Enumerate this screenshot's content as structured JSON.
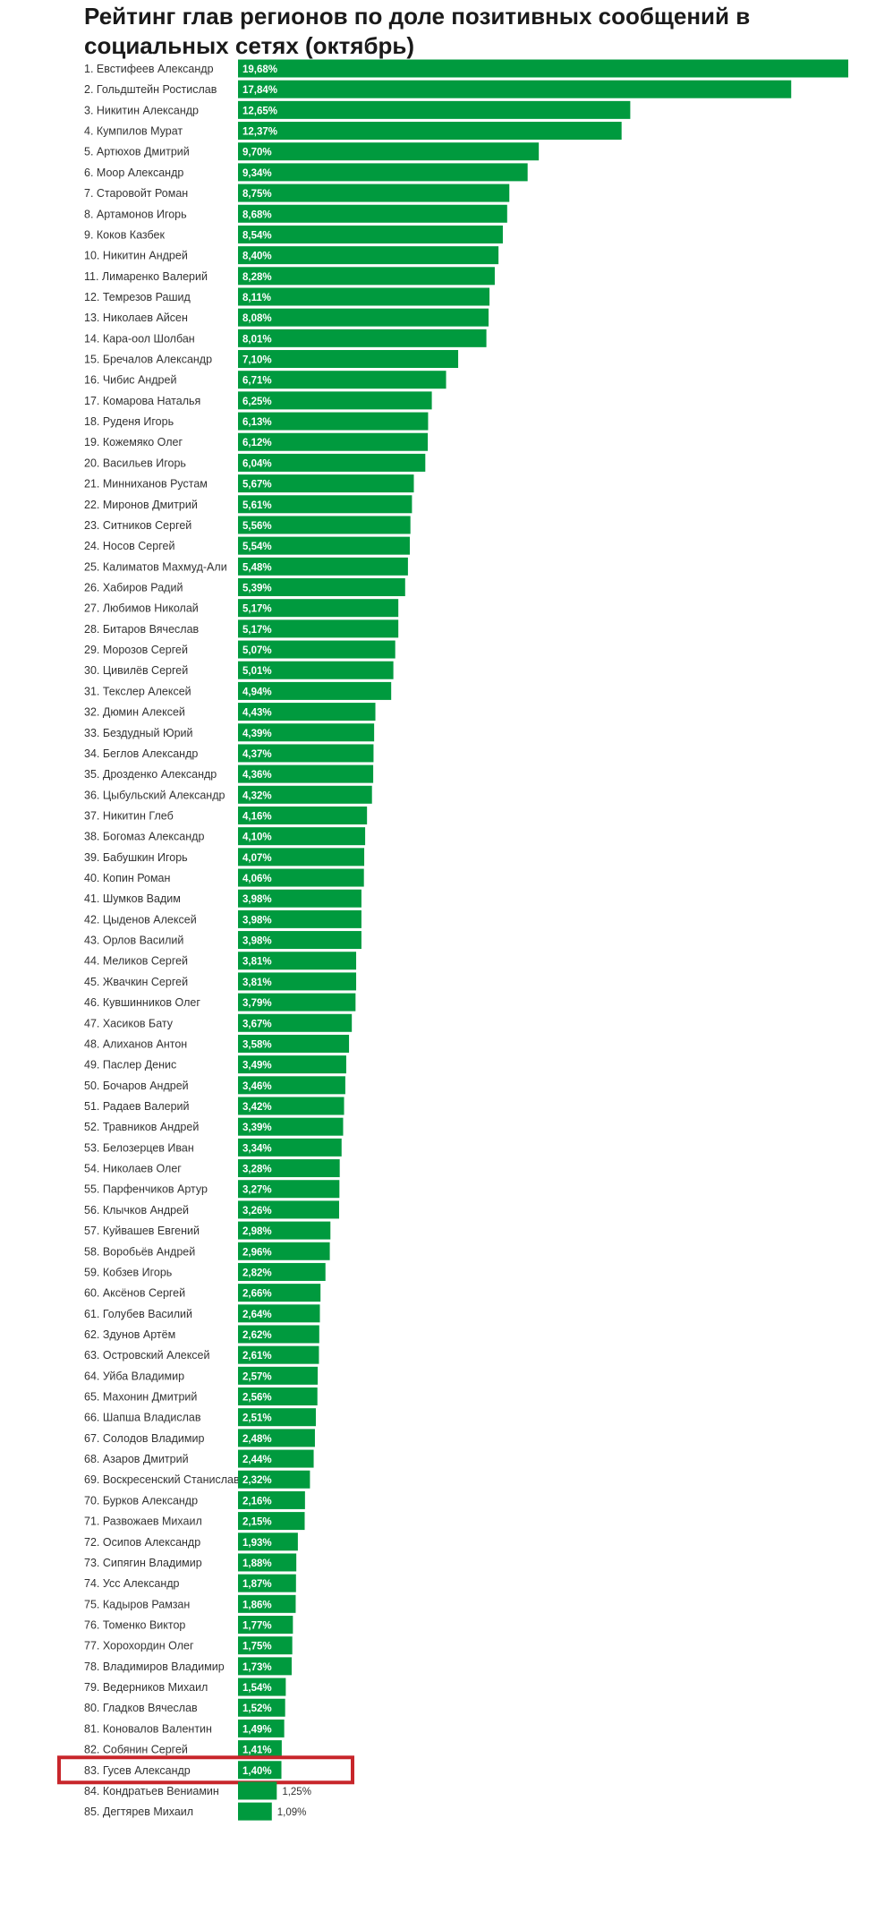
{
  "chart_data": {
    "type": "bar",
    "orientation": "horizontal",
    "title": "Рейтинг глав регионов по доле позитивных сообщений в социальных сетях (октябрь)",
    "bar_color": "#009a3e",
    "highlight_color": "#c8262b",
    "highlight_category": "83. Гусев Александр",
    "categories": [
      "1. Евстифеев Александр",
      "2. Гольдштейн Ростислав",
      "3. Никитин Александр",
      "4. Кумпилов Мурат",
      "5. Артюхов Дмитрий",
      "6. Моор Александр",
      "7. Старовойт Роман",
      "8. Артамонов Игорь",
      "9. Коков Казбек",
      "10. Никитин Андрей",
      "11. Лимаренко Валерий",
      "12. Темрезов Рашид",
      "13. Николаев Айсен",
      "14. Кара-оол Шолбан",
      "15. Бречалов Александр",
      "16. Чибис Андрей",
      "17. Комарова Наталья",
      "18. Руденя Игорь",
      "19. Кожемяко Олег",
      "20. Васильев Игорь",
      "21. Минниханов Рустам",
      "22. Миронов Дмитрий",
      "23. Ситников Сергей",
      "24. Носов Сергей",
      "25. Калиматов Махмуд-Али",
      "26. Хабиров Радий",
      "27. Любимов Николай",
      "28. Битаров Вячеслав",
      "29. Морозов Сергей",
      "30. Цивилёв Сергей",
      "31. Текслер Алексей",
      "32. Дюмин Алексей",
      "33. Бездудный Юрий",
      "34. Беглов Александр",
      "35. Дрозденко Александр",
      "36. Цыбульский Александр",
      "37. Никитин Глеб",
      "38. Богомаз Александр",
      "39. Бабушкин Игорь",
      "40. Копин Роман",
      "41. Шумков Вадим",
      "42. Цыденов Алексей",
      "43. Орлов Василий",
      "44. Меликов Сергей",
      "45. Жвачкин Сергей",
      "46. Кувшинников Олег",
      "47. Хасиков Бату",
      "48. Алиханов Антон",
      "49. Паслер Денис",
      "50. Бочаров Андрей",
      "51. Радаев Валерий",
      "52. Травников Андрей",
      "53. Белозерцев Иван",
      "54. Николаев Олег",
      "55. Парфенчиков Артур",
      "56. Клычков Андрей",
      "57. Куйвашев Евгений",
      "58. Воробьёв Андрей",
      "59. Кобзев Игорь",
      "60. Аксёнов Сергей",
      "61. Голубев Василий",
      "62. Здунов Артём",
      "63. Островский Алексей",
      "64. Уйба Владимир",
      "65. Махонин Дмитрий",
      "66. Шапша Владислав",
      "67. Солодов Владимир",
      "68. Азаров Дмитрий",
      "69. Воскресенский Станислав",
      "70. Бурков Александр",
      "71. Развожаев Михаил",
      "72. Осипов Александр",
      "73. Сипягин Владимир",
      "74. Усс Александр",
      "75. Кадыров Рамзан",
      "76. Томенко Виктор",
      "77. Хорохордин Олег",
      "78. Владимиров Владимир",
      "79. Ведерников Михаил",
      "80. Гладков Вячеслав",
      "81. Коновалов Валентин",
      "82. Собянин Сергей",
      "83. Гусев Александр",
      "84. Кондратьев Вениамин",
      "85. Дегтярев Михаил"
    ],
    "values": [
      19.68,
      17.84,
      12.65,
      12.37,
      9.7,
      9.34,
      8.75,
      8.68,
      8.54,
      8.4,
      8.28,
      8.11,
      8.08,
      8.01,
      7.1,
      6.71,
      6.25,
      6.13,
      6.12,
      6.04,
      5.67,
      5.61,
      5.56,
      5.54,
      5.48,
      5.39,
      5.17,
      5.17,
      5.07,
      5.01,
      4.94,
      4.43,
      4.39,
      4.37,
      4.36,
      4.32,
      4.16,
      4.1,
      4.07,
      4.06,
      3.98,
      3.98,
      3.98,
      3.81,
      3.81,
      3.79,
      3.67,
      3.58,
      3.49,
      3.46,
      3.42,
      3.39,
      3.34,
      3.28,
      3.27,
      3.26,
      2.98,
      2.96,
      2.82,
      2.66,
      2.64,
      2.62,
      2.61,
      2.57,
      2.56,
      2.51,
      2.48,
      2.44,
      2.32,
      2.16,
      2.15,
      1.93,
      1.88,
      1.87,
      1.86,
      1.77,
      1.75,
      1.73,
      1.54,
      1.52,
      1.49,
      1.41,
      1.4,
      1.25,
      1.09
    ],
    "value_labels": [
      "19,68%",
      "17,84%",
      "12,65%",
      "12,37%",
      "9,70%",
      "9,34%",
      "8,75%",
      "8,68%",
      "8,54%",
      "8,40%",
      "8,28%",
      "8,11%",
      "8,08%",
      "8,01%",
      "7,10%",
      "6,71%",
      "6,25%",
      "6,13%",
      "6,12%",
      "6,04%",
      "5,67%",
      "5,61%",
      "5,56%",
      "5,54%",
      "5,48%",
      "5,39%",
      "5,17%",
      "5,17%",
      "5,07%",
      "5,01%",
      "4,94%",
      "4,43%",
      "4,39%",
      "4,37%",
      "4,36%",
      "4,32%",
      "4,16%",
      "4,10%",
      "4,07%",
      "4,06%",
      "3,98%",
      "3,98%",
      "3,98%",
      "3,81%",
      "3,81%",
      "3,79%",
      "3,67%",
      "3,58%",
      "3,49%",
      "3,46%",
      "3,42%",
      "3,39%",
      "3,34%",
      "3,28%",
      "3,27%",
      "3,26%",
      "2,98%",
      "2,96%",
      "2,82%",
      "2,66%",
      "2,64%",
      "2,62%",
      "2,61%",
      "2,57%",
      "2,56%",
      "2,51%",
      "2,48%",
      "2,44%",
      "2,32%",
      "2,16%",
      "2,15%",
      "1,93%",
      "1,88%",
      "1,87%",
      "1,86%",
      "1,77%",
      "1,75%",
      "1,73%",
      "1,54%",
      "1,52%",
      "1,49%",
      "1,41%",
      "1,40%",
      "1,25%",
      "1,09%"
    ],
    "xlim": [
      0,
      19.68
    ],
    "grid": false
  }
}
